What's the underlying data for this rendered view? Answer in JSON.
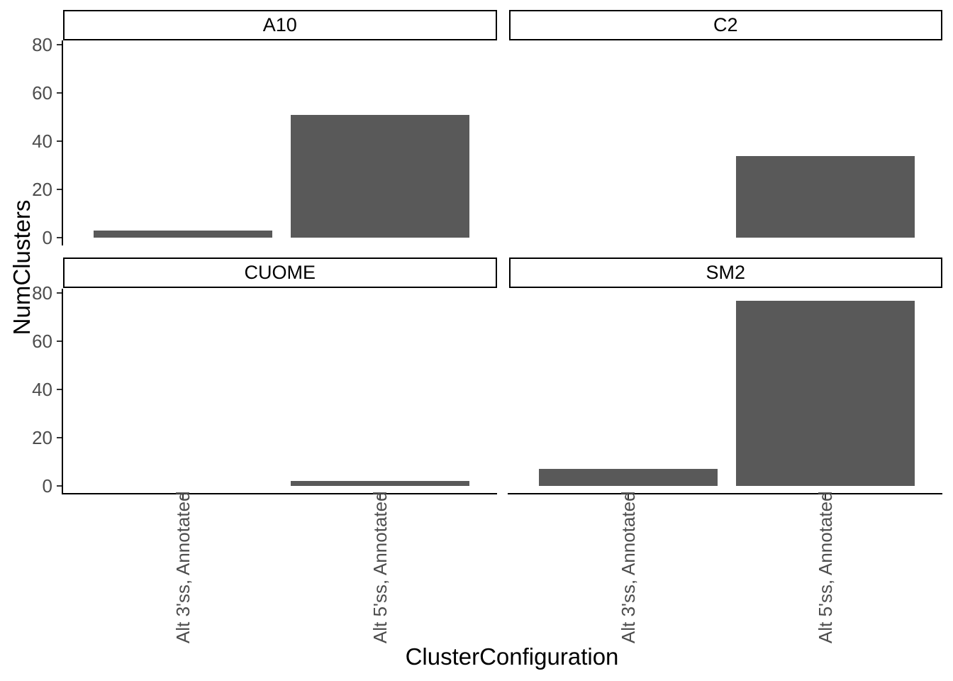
{
  "chart_data": {
    "type": "bar",
    "title": "",
    "xlabel": "ClusterConfiguration",
    "ylabel": "NumClusters",
    "categories": [
      "Alt 3'ss, Annotated",
      "Alt 5'ss, Annotated"
    ],
    "facets": [
      {
        "label": "A10",
        "values": [
          3,
          51
        ]
      },
      {
        "label": "C2",
        "values": [
          0,
          34
        ]
      },
      {
        "label": "CUOME",
        "values": [
          0,
          2
        ]
      },
      {
        "label": "SM2",
        "values": [
          7,
          77
        ]
      }
    ],
    "y_ticks": [
      0,
      20,
      40,
      60,
      80
    ],
    "ylim": [
      0,
      81
    ],
    "bar_color": "#595959",
    "axis_text_color": "#4d4d4d",
    "strip_border_color": "#000000",
    "grid": false,
    "legend": false,
    "facet_layout": "2x2"
  }
}
